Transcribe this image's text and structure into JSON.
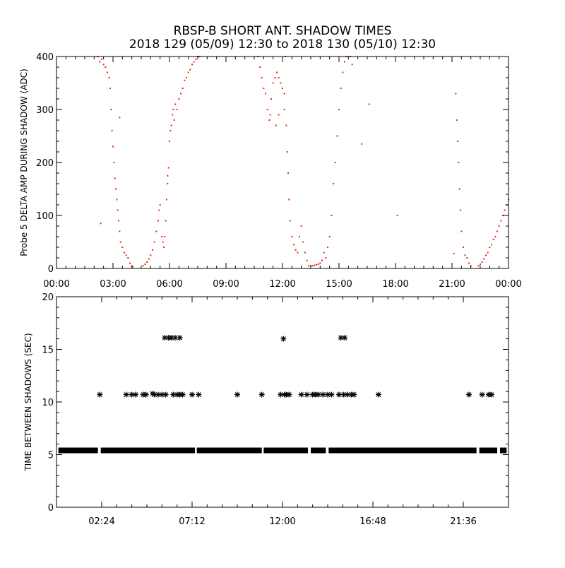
{
  "title_line1": "RBSP-B SHORT ANT. SHADOW TIMES",
  "title_line2": "2018 129 (05/09) 12:30 to 2018 130 (05/10) 12:30",
  "colors": {
    "points_top": "#e8250c",
    "points_bottom": "#000000",
    "axes": "#000000",
    "background": "#ffffff"
  },
  "chart_data": [
    {
      "type": "scatter",
      "title": "",
      "xlabel": "",
      "ylabel": "Probe 5 DELTA AMP DURING SHADOW (ADC)",
      "xlim": [
        0,
        24
      ],
      "ylim": [
        0,
        400
      ],
      "x_tick_values": [
        0,
        3,
        6,
        9,
        12,
        15,
        18,
        21,
        24
      ],
      "x_tick_labels": [
        "00:00",
        "03:00",
        "06:00",
        "09:00",
        "12:00",
        "15:00",
        "18:00",
        "21:00",
        "00:00"
      ],
      "y_tick_values": [
        0,
        100,
        200,
        300,
        400
      ],
      "y_tick_labels": [
        "0",
        "100",
        "200",
        "300",
        "400"
      ],
      "series": [
        {
          "marker": "dot",
          "color": "#e8250c",
          "points": [
            [
              2.2,
              400
            ],
            [
              2.3,
              390
            ],
            [
              2.4,
              395
            ],
            [
              2.5,
              385
            ],
            [
              2.6,
              380
            ],
            [
              2.7,
              370
            ],
            [
              2.8,
              360
            ],
            [
              2.85,
              340
            ],
            [
              2.9,
              300
            ],
            [
              2.95,
              260
            ],
            [
              3.0,
              230
            ],
            [
              3.05,
              200
            ],
            [
              3.1,
              170
            ],
            [
              3.15,
              150
            ],
            [
              3.2,
              130
            ],
            [
              3.25,
              110
            ],
            [
              3.3,
              90
            ],
            [
              3.35,
              70
            ],
            [
              3.4,
              50
            ],
            [
              3.5,
              40
            ],
            [
              3.6,
              30
            ],
            [
              3.7,
              25
            ],
            [
              3.8,
              20
            ],
            [
              3.9,
              10
            ],
            [
              4.0,
              5
            ],
            [
              4.05,
              3
            ],
            [
              2.35,
              85
            ],
            [
              3.35,
              285
            ],
            [
              4.6,
              5
            ],
            [
              4.7,
              8
            ],
            [
              4.8,
              12
            ],
            [
              4.9,
              18
            ],
            [
              5.0,
              25
            ],
            [
              5.1,
              35
            ],
            [
              5.2,
              50
            ],
            [
              5.3,
              70
            ],
            [
              5.4,
              90
            ],
            [
              5.45,
              110
            ],
            [
              5.5,
              120
            ],
            [
              5.6,
              60
            ],
            [
              5.65,
              50
            ],
            [
              5.7,
              40
            ],
            [
              5.75,
              60
            ],
            [
              5.8,
              90
            ],
            [
              5.85,
              130
            ],
            [
              5.9,
              160
            ],
            [
              5.95,
              190
            ],
            [
              5.9,
              175
            ],
            [
              6.0,
              240
            ],
            [
              6.05,
              260
            ],
            [
              6.1,
              270
            ],
            [
              6.15,
              290
            ],
            [
              6.2,
              300
            ],
            [
              6.25,
              280
            ],
            [
              6.3,
              310
            ],
            [
              6.4,
              300
            ],
            [
              6.5,
              320
            ],
            [
              6.6,
              330
            ],
            [
              6.7,
              340
            ],
            [
              6.8,
              355
            ],
            [
              6.9,
              360
            ],
            [
              7.0,
              370
            ],
            [
              7.1,
              375
            ],
            [
              7.2,
              385
            ],
            [
              7.3,
              390
            ],
            [
              7.4,
              395
            ],
            [
              7.5,
              400
            ],
            [
              7.6,
              400
            ],
            [
              10.7,
              400
            ],
            [
              10.8,
              380
            ],
            [
              10.9,
              360
            ],
            [
              11.0,
              340
            ],
            [
              11.1,
              330
            ],
            [
              11.2,
              300
            ],
            [
              11.3,
              280
            ],
            [
              11.35,
              290
            ],
            [
              11.4,
              320
            ],
            [
              11.5,
              350
            ],
            [
              11.6,
              360
            ],
            [
              11.7,
              370
            ],
            [
              11.8,
              360
            ],
            [
              11.9,
              350
            ],
            [
              12.0,
              340
            ],
            [
              12.1,
              330
            ],
            [
              12.15,
              400
            ],
            [
              12.1,
              300
            ],
            [
              12.2,
              270
            ],
            [
              12.25,
              220
            ],
            [
              12.3,
              180
            ],
            [
              12.35,
              130
            ],
            [
              12.4,
              90
            ],
            [
              12.5,
              60
            ],
            [
              12.6,
              45
            ],
            [
              12.7,
              35
            ],
            [
              12.8,
              30
            ],
            [
              12.9,
              60
            ],
            [
              13.0,
              80
            ],
            [
              13.1,
              50
            ],
            [
              13.2,
              30
            ],
            [
              13.3,
              15
            ],
            [
              13.4,
              5
            ],
            [
              11.65,
              270
            ],
            [
              11.8,
              290
            ],
            [
              13.5,
              5
            ],
            [
              13.6,
              5
            ],
            [
              13.7,
              6
            ],
            [
              13.8,
              7
            ],
            [
              13.9,
              8
            ],
            [
              14.0,
              10
            ],
            [
              14.1,
              15
            ],
            [
              14.2,
              30
            ],
            [
              14.3,
              20
            ],
            [
              14.4,
              40
            ],
            [
              14.5,
              60
            ],
            [
              14.6,
              100
            ],
            [
              14.7,
              160
            ],
            [
              14.8,
              200
            ],
            [
              14.9,
              250
            ],
            [
              15.0,
              300
            ],
            [
              15.1,
              340
            ],
            [
              15.2,
              370
            ],
            [
              15.3,
              390
            ],
            [
              15.4,
              400
            ],
            [
              15.6,
              400
            ],
            [
              15.7,
              385
            ],
            [
              16.2,
              235
            ],
            [
              16.6,
              310
            ],
            [
              18.1,
              100
            ],
            [
              21.2,
              330
            ],
            [
              21.25,
              280
            ],
            [
              21.3,
              240
            ],
            [
              21.35,
              200
            ],
            [
              21.4,
              150
            ],
            [
              21.45,
              110
            ],
            [
              21.5,
              70
            ],
            [
              21.6,
              40
            ],
            [
              21.7,
              25
            ],
            [
              21.8,
              20
            ],
            [
              21.9,
              10
            ],
            [
              22.0,
              5
            ],
            [
              21.1,
              28
            ],
            [
              22.4,
              5
            ],
            [
              22.5,
              8
            ],
            [
              22.6,
              12
            ],
            [
              22.7,
              18
            ],
            [
              22.8,
              25
            ],
            [
              22.9,
              30
            ],
            [
              23.0,
              40
            ],
            [
              23.1,
              45
            ],
            [
              23.2,
              55
            ],
            [
              23.3,
              60
            ],
            [
              23.4,
              70
            ],
            [
              23.5,
              80
            ],
            [
              23.6,
              90
            ],
            [
              23.7,
              100
            ],
            [
              23.8,
              110
            ],
            [
              23.9,
              120
            ],
            [
              24.0,
              130
            ]
          ]
        }
      ],
      "grid": false
    },
    {
      "type": "scatter",
      "title": "",
      "xlabel": "",
      "ylabel": "TIME BETWEEN SHADOWS (SEC)",
      "xlim": [
        0,
        24
      ],
      "ylim": [
        0,
        20
      ],
      "x_tick_values": [
        2.4,
        7.2,
        12.0,
        16.8,
        21.6
      ],
      "x_tick_labels": [
        "02:24",
        "07:12",
        "12:00",
        "16:48",
        "21:36"
      ],
      "y_tick_values": [
        0,
        5,
        10,
        15,
        20
      ],
      "y_tick_labels": [
        "0",
        "5",
        "10",
        "15",
        "20"
      ],
      "baseline": {
        "y": 5.4,
        "x_start": 0.1,
        "x_end": 23.9,
        "gaps": [
          [
            2.2,
            2.35
          ],
          [
            7.35,
            7.45
          ],
          [
            10.9,
            11.0
          ],
          [
            13.35,
            13.5
          ],
          [
            14.3,
            14.45
          ],
          [
            22.3,
            22.45
          ],
          [
            23.4,
            23.55
          ]
        ]
      },
      "series": [
        {
          "marker": "asterisk",
          "color": "#000000",
          "points": [
            [
              2.3,
              10.7
            ],
            [
              3.7,
              10.7
            ],
            [
              4.0,
              10.7
            ],
            [
              4.2,
              10.7
            ],
            [
              4.6,
              10.7
            ],
            [
              4.75,
              10.7
            ],
            [
              5.1,
              10.8
            ],
            [
              5.2,
              10.7
            ],
            [
              5.4,
              10.7
            ],
            [
              5.6,
              10.7
            ],
            [
              5.8,
              10.7
            ],
            [
              6.2,
              10.7
            ],
            [
              6.4,
              10.7
            ],
            [
              6.55,
              10.7
            ],
            [
              6.7,
              10.7
            ],
            [
              7.2,
              10.7
            ],
            [
              7.55,
              10.7
            ],
            [
              9.6,
              10.7
            ],
            [
              10.9,
              10.7
            ],
            [
              11.9,
              10.7
            ],
            [
              12.1,
              10.7
            ],
            [
              12.2,
              10.7
            ],
            [
              12.35,
              10.7
            ],
            [
              13.0,
              10.7
            ],
            [
              13.3,
              10.7
            ],
            [
              13.6,
              10.7
            ],
            [
              13.75,
              10.7
            ],
            [
              13.9,
              10.7
            ],
            [
              14.15,
              10.7
            ],
            [
              14.4,
              10.7
            ],
            [
              14.6,
              10.7
            ],
            [
              15.0,
              10.7
            ],
            [
              15.25,
              10.7
            ],
            [
              15.45,
              10.7
            ],
            [
              15.65,
              10.7
            ],
            [
              15.8,
              10.7
            ],
            [
              17.1,
              10.7
            ],
            [
              21.9,
              10.7
            ],
            [
              22.6,
              10.7
            ],
            [
              22.95,
              10.7
            ],
            [
              23.1,
              10.7
            ],
            [
              5.75,
              16.1
            ],
            [
              5.95,
              16.1
            ],
            [
              6.1,
              16.1
            ],
            [
              6.3,
              16.1
            ],
            [
              6.55,
              16.1
            ],
            [
              12.05,
              16.0
            ],
            [
              15.1,
              16.1
            ],
            [
              15.3,
              16.1
            ]
          ]
        }
      ],
      "grid": false
    }
  ]
}
